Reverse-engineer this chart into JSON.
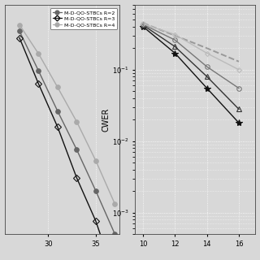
{
  "left": {
    "xlim": [
      25.5,
      37.5
    ],
    "xticks": [
      30,
      35
    ],
    "ylim": [
      1e-05,
      2.0
    ],
    "series": [
      {
        "label": "M-D-QO-STBCs R=2",
        "color": "#666666",
        "marker": "o",
        "markersize": 4,
        "linewidth": 1.0,
        "x": [
          27,
          29,
          31,
          33,
          35,
          37
        ],
        "y": [
          0.5,
          0.06,
          0.007,
          0.0009,
          0.0001,
          1e-05
        ]
      },
      {
        "label": "M-D-QO-STBCs R=3",
        "color": "#111111",
        "marker": "D",
        "markersize": 4,
        "linewidth": 1.0,
        "x": [
          27,
          29,
          31,
          33,
          35,
          37
        ],
        "y": [
          0.35,
          0.03,
          0.003,
          0.0002,
          2e-05,
          1e-06
        ]
      },
      {
        "label": "M-D-QO-STBCs R=4",
        "color": "#aaaaaa",
        "marker": "o",
        "markersize": 4,
        "linewidth": 1.0,
        "x": [
          27,
          29,
          31,
          33,
          35,
          37
        ],
        "y": [
          0.7,
          0.15,
          0.025,
          0.004,
          0.0005,
          5e-05
        ]
      }
    ]
  },
  "right": {
    "ylabel": "CWER",
    "xlim": [
      9.5,
      17.0
    ],
    "xticks": [
      10,
      12,
      14,
      16
    ],
    "ylim": [
      0.0005,
      0.8
    ],
    "series": [
      {
        "label": "dashed_ref",
        "color": "#999999",
        "linestyle": "--",
        "marker": "None",
        "markersize": 0,
        "linewidth": 1.4,
        "x": [
          10,
          12,
          14,
          16
        ],
        "y": [
          0.45,
          0.3,
          0.2,
          0.13
        ]
      },
      {
        "label": "R2_star_black",
        "color": "#111111",
        "linestyle": "-",
        "marker": "*",
        "markersize": 6,
        "linewidth": 1.0,
        "x": [
          10,
          12,
          14,
          16
        ],
        "y": [
          0.4,
          0.17,
          0.055,
          0.018
        ]
      },
      {
        "label": "R3_triangle_dark",
        "color": "#333333",
        "linestyle": "-",
        "marker": "^",
        "markersize": 4,
        "linewidth": 1.0,
        "x": [
          10,
          12,
          14,
          16
        ],
        "y": [
          0.42,
          0.21,
          0.08,
          0.028
        ]
      },
      {
        "label": "R4_circle_mid",
        "color": "#777777",
        "linestyle": "-",
        "marker": "o",
        "markersize": 4,
        "linewidth": 1.0,
        "x": [
          10,
          12,
          14,
          16
        ],
        "y": [
          0.43,
          0.26,
          0.11,
          0.055
        ]
      },
      {
        "label": "R4_diamond_light",
        "color": "#bbbbbb",
        "linestyle": "-",
        "marker": "D",
        "markersize": 3,
        "linewidth": 1.0,
        "x": [
          10,
          12,
          14,
          16
        ],
        "y": [
          0.44,
          0.31,
          0.17,
          0.1
        ]
      }
    ]
  },
  "legend": {
    "labels": [
      "M-D-QO-STBCs R=2",
      "M-D-QO-STBCs R=3",
      "M-D-QO-STBCs R=4"
    ],
    "colors": [
      "#666666",
      "#111111",
      "#aaaaaa"
    ],
    "markers": [
      "o",
      "D",
      "o"
    ],
    "linestyles": [
      "-",
      "-",
      "-"
    ]
  },
  "bg_color": "#d8d8d8",
  "grid_color": "#ffffff",
  "figsize": [
    3.2,
    3.2
  ],
  "dpi": 100
}
